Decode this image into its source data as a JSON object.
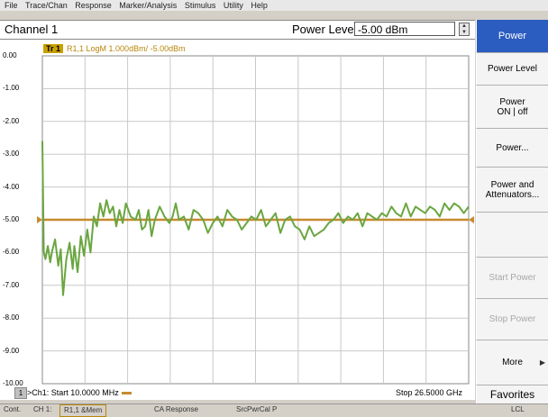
{
  "menu": [
    "File",
    "Trace/Chan",
    "Response",
    "Marker/Analysis",
    "Stimulus",
    "Utility",
    "Help"
  ],
  "channel": {
    "title": "Channel 1",
    "power_level_label": "Power Level",
    "power_level_value": "-5.00 dBm"
  },
  "trace": {
    "badge": "Tr 1",
    "description": "R1,1 LogM 1.000dBm/ -5.00dBm"
  },
  "axis": {
    "y_ticks": [
      "0.00",
      "-1.00",
      "-2.00",
      "-3.00",
      "-4.00",
      "-5.00",
      "-6.00",
      "-7.00",
      "-8.00",
      "-9.00",
      "-10.00"
    ],
    "start_label": ">Ch1: Start  10.0000 MHz",
    "stop_label": "Stop  26.5000 GHz",
    "channel_number": "1"
  },
  "colors": {
    "memory_trace": "#c68a2e",
    "data_trace": "#6aa640",
    "grid": "#c8c8c8",
    "softkey_title_bg": "#2b5cc0"
  },
  "chart_data": {
    "type": "line",
    "ylim": [
      -10,
      0
    ],
    "x_range_ghz": [
      0.01,
      26.5
    ],
    "grid": true,
    "series": [
      {
        "x": [
          0.01,
          0.1,
          0.2,
          0.35,
          0.5,
          0.6,
          0.8,
          1.0,
          1.15,
          1.3,
          1.5,
          1.7,
          1.9,
          2.0,
          2.2,
          2.4,
          2.6,
          2.8,
          3.0,
          3.2,
          3.4,
          3.6,
          3.8,
          4.0,
          4.2,
          4.4,
          4.6,
          4.8,
          5.0,
          5.2,
          5.5,
          5.8,
          6.0,
          6.2,
          6.4,
          6.6,
          6.8,
          7.0,
          7.3,
          7.6,
          7.9,
          8.1,
          8.3,
          8.5,
          8.8,
          9.1,
          9.4,
          9.7,
          10.0,
          10.3,
          10.6,
          10.9,
          11.2,
          11.5,
          11.8,
          12.1,
          12.4,
          12.7,
          13.0,
          13.3,
          13.6,
          13.9,
          14.2,
          14.5,
          14.8,
          15.1,
          15.4,
          15.7,
          16.0,
          16.3,
          16.6,
          16.9,
          17.2,
          17.5,
          17.8,
          18.1,
          18.4,
          18.7,
          19.0,
          19.3,
          19.6,
          19.9,
          20.2,
          20.5,
          20.8,
          21.1,
          21.4,
          21.7,
          22.0,
          22.3,
          22.6,
          22.9,
          23.2,
          23.5,
          23.8,
          24.1,
          24.4,
          24.7,
          25.0,
          25.3,
          25.6,
          25.9,
          26.2,
          26.5
        ],
        "y": [
          -2.6,
          -6.0,
          -6.2,
          -5.8,
          -6.3,
          -6.0,
          -5.6,
          -6.4,
          -5.9,
          -7.3,
          -6.2,
          -5.7,
          -6.5,
          -5.8,
          -6.6,
          -5.5,
          -6.1,
          -5.3,
          -6.0,
          -4.9,
          -5.2,
          -4.5,
          -4.9,
          -4.4,
          -4.8,
          -4.6,
          -5.2,
          -4.7,
          -5.1,
          -4.5,
          -4.9,
          -5.0,
          -4.7,
          -5.3,
          -5.2,
          -4.7,
          -5.5,
          -5.0,
          -4.6,
          -4.9,
          -5.1,
          -4.9,
          -4.5,
          -5.0,
          -4.9,
          -5.3,
          -4.7,
          -4.8,
          -5.0,
          -5.4,
          -5.1,
          -4.9,
          -5.2,
          -4.7,
          -4.9,
          -5.0,
          -5.3,
          -5.1,
          -4.9,
          -5.0,
          -4.7,
          -5.2,
          -5.0,
          -4.8,
          -5.4,
          -5.0,
          -4.9,
          -5.2,
          -5.3,
          -5.6,
          -5.2,
          -5.5,
          -5.4,
          -5.3,
          -5.1,
          -5.0,
          -4.8,
          -5.1,
          -4.9,
          -5.0,
          -4.8,
          -5.2,
          -4.8,
          -4.9,
          -5.0,
          -4.8,
          -4.9,
          -4.6,
          -4.8,
          -4.9,
          -4.5,
          -4.9,
          -4.6,
          -4.7,
          -4.8,
          -4.6,
          -4.7,
          -4.9,
          -4.5,
          -4.7,
          -4.5,
          -4.6,
          -4.8,
          -4.6
        ]
      },
      {
        "x": [
          0.01,
          26.5
        ],
        "y": [
          -5.0,
          -5.0
        ]
      }
    ]
  },
  "status": {
    "cont": "Cont.",
    "channel": "CH 1:",
    "trace": "R1,1 &Mem",
    "response": "CA Response",
    "cal": "SrcPwrCal P",
    "lcl": "LCL"
  },
  "softkeys": [
    {
      "label": "Power",
      "style": "title"
    },
    {
      "label": "Power Level",
      "style": "normal"
    },
    {
      "label": "Power",
      "label2": "ON | off",
      "style": "normal"
    },
    {
      "label": "Power...",
      "style": "normal"
    },
    {
      "label": "Power and",
      "label2": "Attenuators...",
      "style": "normal"
    },
    {
      "label": "",
      "style": "normal"
    },
    {
      "label": "Start Power",
      "style": "disabled"
    },
    {
      "label": "Stop Power",
      "style": "disabled"
    },
    {
      "label": "More",
      "style": "more"
    },
    {
      "label": "Favorites",
      "style": "favorites"
    }
  ]
}
